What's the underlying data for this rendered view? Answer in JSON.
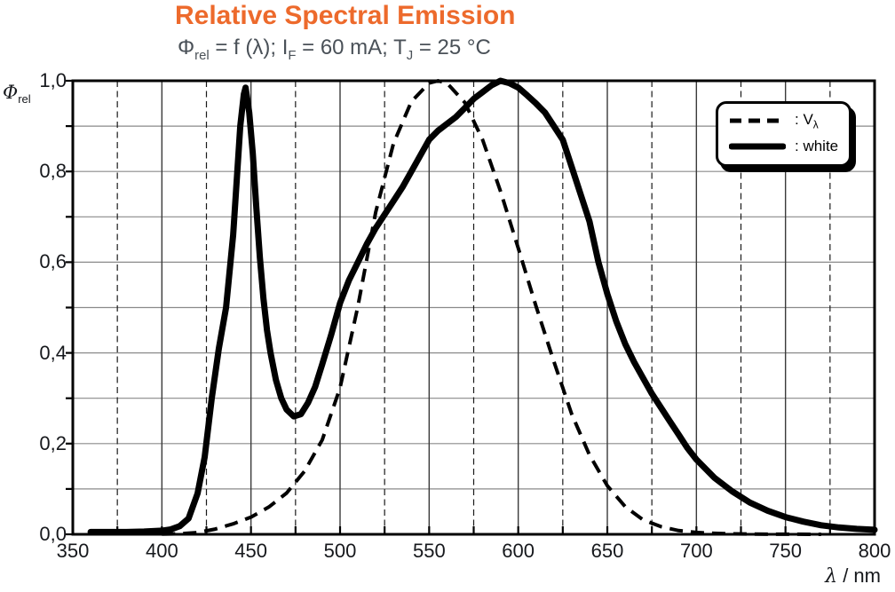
{
  "title": {
    "text": "Relative Spectral Emission",
    "color": "#ED6A2C"
  },
  "subtitle": {
    "color": "#4A5158",
    "parts": [
      {
        "t": "Φ"
      },
      {
        "t": "rel",
        "sub": true
      },
      {
        "t": " = f (λ); I"
      },
      {
        "t": "F",
        "sub": true
      },
      {
        "t": " = 60 mA; T"
      },
      {
        "t": "J",
        "sub": true
      },
      {
        "t": " = 25 °C"
      }
    ]
  },
  "y_axis_label": {
    "parts": [
      {
        "t": "Φ",
        "italic": true
      },
      {
        "t": "rel",
        "sub": true
      }
    ]
  },
  "x_axis_label": {
    "parts": [
      {
        "t": "λ",
        "italic": true
      },
      {
        "t": " / nm"
      }
    ]
  },
  "legend": {
    "entries": [
      {
        "sample": "dashed-line",
        "parts": [
          {
            "t": ": V"
          },
          {
            "t": "λ",
            "sub": true
          }
        ]
      },
      {
        "sample": "solid-line",
        "parts": [
          {
            "t": ": white"
          }
        ]
      }
    ]
  },
  "colors": {
    "curve": "#000000",
    "frame": "#000000",
    "grid_horizontal": "#8a8a8a",
    "grid_vertical_major": "#3a3a3a",
    "grid_vertical_minor": "#1a1a1a"
  },
  "chart_data": {
    "type": "line",
    "title": "Relative Spectral Emission",
    "subtitle": "Φrel = f (λ); IF = 60 mA; TJ = 25 °C",
    "xlabel": "λ / nm",
    "ylabel": "Φrel",
    "xlim": [
      350,
      800
    ],
    "ylim": [
      0,
      1
    ],
    "x_major_tick_step": 50,
    "x_minor_tick_step": 25,
    "y_tick_step": 0.1,
    "x_tick_labels": [
      "350",
      "400",
      "450",
      "500",
      "550",
      "600",
      "650",
      "700",
      "750",
      "800"
    ],
    "y_tick_labels": [
      {
        "label": "1,0",
        "value": 1.0
      },
      {
        "label": "0,8",
        "value": 0.8
      },
      {
        "label": "0,6",
        "value": 0.6
      },
      {
        "label": "0,4",
        "value": 0.4
      },
      {
        "label": "0,2",
        "value": 0.2
      },
      {
        "label": "0,0",
        "value": 0.0
      }
    ],
    "grid": {
      "horizontal": "solid",
      "vertical_major": "solid",
      "vertical_minor": "dashed"
    },
    "legend_position": "top-right",
    "series": [
      {
        "name": "Vλ",
        "line": "dashed",
        "color": "#000000",
        "points": [
          [
            400,
            0.0004
          ],
          [
            410,
            0.0012
          ],
          [
            420,
            0.004
          ],
          [
            430,
            0.0116
          ],
          [
            440,
            0.023
          ],
          [
            450,
            0.038
          ],
          [
            460,
            0.06
          ],
          [
            470,
            0.091
          ],
          [
            480,
            0.139
          ],
          [
            490,
            0.208
          ],
          [
            500,
            0.323
          ],
          [
            510,
            0.503
          ],
          [
            520,
            0.71
          ],
          [
            530,
            0.862
          ],
          [
            540,
            0.954
          ],
          [
            550,
            0.995
          ],
          [
            555,
            1.0
          ],
          [
            560,
            0.995
          ],
          [
            570,
            0.952
          ],
          [
            580,
            0.87
          ],
          [
            590,
            0.757
          ],
          [
            600,
            0.631
          ],
          [
            610,
            0.503
          ],
          [
            620,
            0.381
          ],
          [
            630,
            0.265
          ],
          [
            640,
            0.175
          ],
          [
            650,
            0.107
          ],
          [
            660,
            0.061
          ],
          [
            670,
            0.032
          ],
          [
            680,
            0.017
          ],
          [
            690,
            0.0082
          ],
          [
            700,
            0.0041
          ],
          [
            710,
            0.0021
          ],
          [
            720,
            0.001
          ],
          [
            730,
            0.0005
          ],
          [
            740,
            0.00025
          ],
          [
            750,
            0.0001
          ],
          [
            770,
            0
          ]
        ]
      },
      {
        "name": "white",
        "line": "solid",
        "color": "#000000",
        "points": [
          [
            360,
            0.005
          ],
          [
            370,
            0.005
          ],
          [
            380,
            0.005
          ],
          [
            390,
            0.006
          ],
          [
            400,
            0.008
          ],
          [
            405,
            0.011
          ],
          [
            410,
            0.018
          ],
          [
            415,
            0.035
          ],
          [
            420,
            0.09
          ],
          [
            424,
            0.17
          ],
          [
            428,
            0.3
          ],
          [
            432,
            0.41
          ],
          [
            436,
            0.5
          ],
          [
            440,
            0.66
          ],
          [
            442,
            0.78
          ],
          [
            444,
            0.9
          ],
          [
            446,
            0.97
          ],
          [
            447,
            0.985
          ],
          [
            449,
            0.93
          ],
          [
            451,
            0.84
          ],
          [
            453,
            0.72
          ],
          [
            455,
            0.61
          ],
          [
            457,
            0.52
          ],
          [
            459,
            0.45
          ],
          [
            461,
            0.4
          ],
          [
            464,
            0.34
          ],
          [
            467,
            0.3
          ],
          [
            470,
            0.275
          ],
          [
            474,
            0.26
          ],
          [
            478,
            0.265
          ],
          [
            482,
            0.29
          ],
          [
            486,
            0.325
          ],
          [
            490,
            0.375
          ],
          [
            495,
            0.44
          ],
          [
            500,
            0.51
          ],
          [
            505,
            0.56
          ],
          [
            510,
            0.6
          ],
          [
            515,
            0.64
          ],
          [
            520,
            0.675
          ],
          [
            525,
            0.705
          ],
          [
            530,
            0.735
          ],
          [
            535,
            0.765
          ],
          [
            540,
            0.8
          ],
          [
            545,
            0.835
          ],
          [
            550,
            0.87
          ],
          [
            555,
            0.89
          ],
          [
            560,
            0.905
          ],
          [
            565,
            0.92
          ],
          [
            570,
            0.94
          ],
          [
            575,
            0.96
          ],
          [
            580,
            0.975
          ],
          [
            585,
            0.99
          ],
          [
            590,
            1.0
          ],
          [
            595,
            0.995
          ],
          [
            600,
            0.985
          ],
          [
            605,
            0.968
          ],
          [
            610,
            0.95
          ],
          [
            615,
            0.93
          ],
          [
            620,
            0.9
          ],
          [
            625,
            0.87
          ],
          [
            630,
            0.81
          ],
          [
            635,
            0.75
          ],
          [
            640,
            0.69
          ],
          [
            645,
            0.6
          ],
          [
            650,
            0.53
          ],
          [
            655,
            0.47
          ],
          [
            660,
            0.42
          ],
          [
            665,
            0.38
          ],
          [
            670,
            0.345
          ],
          [
            675,
            0.31
          ],
          [
            680,
            0.28
          ],
          [
            685,
            0.25
          ],
          [
            690,
            0.22
          ],
          [
            695,
            0.19
          ],
          [
            700,
            0.165
          ],
          [
            710,
            0.125
          ],
          [
            720,
            0.095
          ],
          [
            730,
            0.07
          ],
          [
            740,
            0.052
          ],
          [
            750,
            0.038
          ],
          [
            760,
            0.028
          ],
          [
            770,
            0.02
          ],
          [
            780,
            0.015
          ],
          [
            790,
            0.012
          ],
          [
            800,
            0.01
          ]
        ]
      }
    ]
  }
}
